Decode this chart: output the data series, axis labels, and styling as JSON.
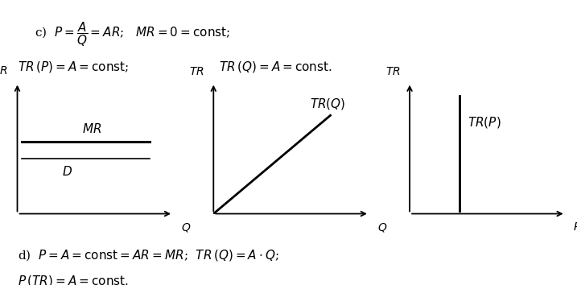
{
  "text_c_line1": "c)  $P = \\dfrac{A}{Q} = AR$;   $MR = 0 = \\mathrm{const}$;",
  "text_c_line2": "$TR\\,(P) = A = \\mathrm{const}$;",
  "text_c_line2b": "$TR\\,(Q) = A = \\mathrm{const}$.",
  "text_d_line1": "d)  $P = A = \\mathrm{const} = AR = MR$;  $TR\\,(Q) = A \\cdot Q$;",
  "text_d_line2": "$P\\,(TR) = A = \\mathrm{const}$.",
  "graph1_ylabel": "$P, MR$",
  "graph1_xlabel": "$Q$",
  "graph1_mr_label": "$MR$",
  "graph1_d_label": "$D$",
  "graph2_ylabel": "$TR$",
  "graph2_xlabel": "$Q$",
  "graph2_trq_label": "$TR(Q)$",
  "graph3_ylabel": "$TR$",
  "graph3_xlabel": "$P$",
  "graph3_trp_label": "$TR(P)$",
  "line_color": "#000000",
  "bg_color": "#ffffff",
  "font_size_text": 11,
  "font_size_label": 10,
  "font_size_axis_label": 10
}
